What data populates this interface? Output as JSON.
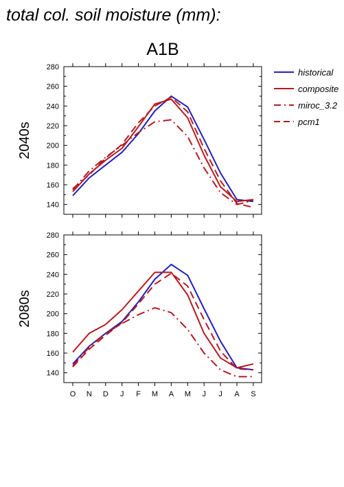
{
  "page_title": "total col. soil moisture (mm):",
  "colors": {
    "historical": "#1f1fbf",
    "composite": "#b5191f",
    "miroc_3.2": "#b5191f",
    "pcm1": "#b5191f"
  },
  "chart_data": [
    {
      "type": "line",
      "title": "A1B",
      "ylabel": "2040s",
      "ylim": [
        130,
        280
      ],
      "yticks": [
        140,
        160,
        180,
        200,
        220,
        240,
        260,
        280
      ],
      "categories": [
        "O",
        "N",
        "D",
        "J",
        "F",
        "M",
        "A",
        "M",
        "J",
        "J",
        "A",
        "S"
      ],
      "legend_position": "right",
      "series": [
        {
          "name": "historical",
          "style": "solid",
          "color": "#1f1fbf",
          "values": [
            149,
            167,
            180,
            193,
            212,
            235,
            250,
            239,
            206,
            172,
            145,
            143
          ]
        },
        {
          "name": "composite",
          "style": "solid",
          "color": "#b5191f",
          "values": [
            153,
            171,
            185,
            197,
            219,
            242,
            247,
            228,
            190,
            158,
            143,
            145
          ]
        },
        {
          "name": "miroc_3.2",
          "style": "dashdot",
          "color": "#b5191f",
          "values": [
            155,
            174,
            188,
            200,
            213,
            224,
            226,
            209,
            177,
            152,
            140,
            144
          ]
        },
        {
          "name": "pcm1",
          "style": "dashed",
          "color": "#b5191f",
          "values": [
            156,
            170,
            187,
            201,
            223,
            240,
            249,
            234,
            197,
            164,
            141,
            137
          ]
        }
      ]
    },
    {
      "type": "line",
      "title": "",
      "ylabel": "2080s",
      "ylim": [
        130,
        280
      ],
      "yticks": [
        140,
        160,
        180,
        200,
        220,
        240,
        260,
        280
      ],
      "categories": [
        "O",
        "N",
        "D",
        "J",
        "F",
        "M",
        "A",
        "M",
        "J",
        "J",
        "A",
        "S"
      ],
      "series": [
        {
          "name": "historical",
          "style": "solid",
          "color": "#1f1fbf",
          "values": [
            149,
            167,
            180,
            192,
            212,
            235,
            250,
            239,
            205,
            172,
            145,
            143
          ]
        },
        {
          "name": "composite",
          "style": "solid",
          "color": "#b5191f",
          "values": [
            161,
            180,
            189,
            204,
            223,
            242,
            242,
            219,
            180,
            155,
            145,
            149
          ]
        },
        {
          "name": "miroc_3.2",
          "style": "dashdot",
          "color": "#b5191f",
          "values": [
            147,
            166,
            180,
            190,
            199,
            206,
            201,
            184,
            160,
            143,
            136,
            136
          ]
        },
        {
          "name": "pcm1",
          "style": "dashed",
          "color": "#b5191f",
          "values": [
            146,
            164,
            178,
            191,
            210,
            230,
            241,
            228,
            194,
            162,
            144,
            143
          ]
        }
      ]
    }
  ]
}
